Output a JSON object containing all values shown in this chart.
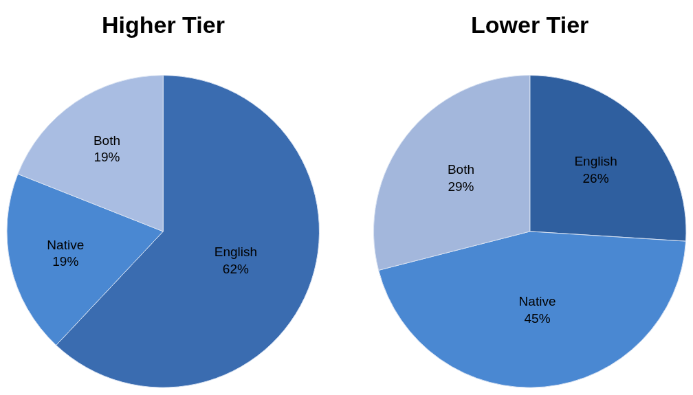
{
  "chart_data": [
    {
      "type": "pie",
      "title": "Higher Tier",
      "categories": [
        "English",
        "Native",
        "Both"
      ],
      "values": [
        62,
        19,
        19
      ],
      "value_labels": [
        "62%",
        "19%",
        "19%"
      ],
      "colors": [
        "#3a6cb0",
        "#4a88d2",
        "#a9bde2"
      ]
    },
    {
      "type": "pie",
      "title": "Lower Tier",
      "categories": [
        "English",
        "Native",
        "Both"
      ],
      "values": [
        26,
        45,
        29
      ],
      "value_labels": [
        "26%",
        "45%",
        "29%"
      ],
      "colors": [
        "#2f5f9f",
        "#4a88d2",
        "#a3b7dc"
      ]
    }
  ]
}
